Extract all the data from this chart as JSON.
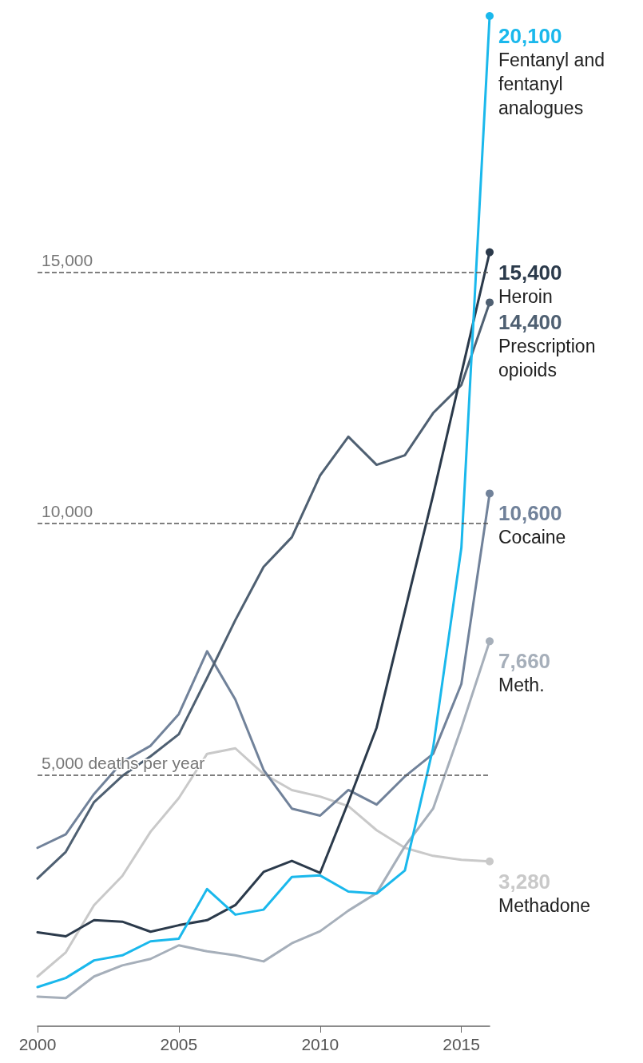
{
  "chart_data": {
    "type": "line",
    "x": [
      2000,
      2001,
      2002,
      2003,
      2004,
      2005,
      2006,
      2007,
      2008,
      2009,
      2010,
      2011,
      2012,
      2013,
      2014,
      2015,
      2016
    ],
    "xlim": [
      2000,
      2016
    ],
    "xticks": [
      2000,
      2005,
      2010,
      2015
    ],
    "tick_labels": "x",
    "grid": false,
    "series": [
      {
        "name": "Methadone",
        "color": "#c9c9c9",
        "values": [
          990,
          1470,
          2410,
          2990,
          3870,
          4540,
          5420,
          5530,
          5020,
          4700,
          4570,
          4380,
          3900,
          3550,
          3390,
          3310,
          3280
        ],
        "value_labels": [
          null,
          null,
          null,
          null,
          null,
          null,
          null,
          null,
          null,
          null,
          null,
          null,
          null,
          null,
          null,
          null,
          "3,280"
        ]
      },
      {
        "name": "Meth.",
        "color": "#a6afba",
        "values": [
          590,
          560,
          990,
          1210,
          1340,
          1610,
          1490,
          1410,
          1290,
          1650,
          1890,
          2300,
          2650,
          3580,
          4330,
          5940,
          7660
        ],
        "value_labels": [
          null,
          null,
          null,
          null,
          null,
          null,
          null,
          null,
          null,
          null,
          null,
          null,
          null,
          null,
          null,
          null,
          "7,660"
        ]
      },
      {
        "name": "Cocaine",
        "color": "#71829a",
        "values": [
          3550,
          3820,
          4620,
          5260,
          5580,
          6210,
          7460,
          6500,
          5100,
          4330,
          4190,
          4700,
          4410,
          4970,
          5420,
          6810,
          10600
        ],
        "value_labels": [
          null,
          null,
          null,
          null,
          null,
          null,
          null,
          null,
          null,
          null,
          null,
          null,
          null,
          null,
          null,
          null,
          "10,600"
        ]
      },
      {
        "name": "Prescription opioids",
        "color": "#4f6072",
        "values": [
          2940,
          3470,
          4460,
          4980,
          5370,
          5810,
          6930,
          8080,
          9140,
          9730,
          10960,
          11730,
          11170,
          11360,
          12200,
          12760,
          14400
        ],
        "value_labels": [
          null,
          null,
          null,
          null,
          null,
          null,
          null,
          null,
          null,
          null,
          null,
          null,
          null,
          null,
          null,
          null,
          "14,400"
        ]
      },
      {
        "name": "Heroin",
        "color": "#2b3a4b",
        "values": [
          1870,
          1790,
          2110,
          2080,
          1880,
          2010,
          2110,
          2410,
          3070,
          3290,
          3050,
          4460,
          5940,
          8260,
          10570,
          12990,
          15400
        ],
        "value_labels": [
          null,
          null,
          null,
          null,
          null,
          null,
          null,
          null,
          null,
          null,
          null,
          null,
          null,
          null,
          null,
          null,
          "15,400"
        ]
      },
      {
        "name": "Fentanyl and fentanyl analogues",
        "color": "#1ab8ec",
        "values": [
          780,
          960,
          1310,
          1410,
          1690,
          1740,
          2730,
          2220,
          2320,
          2970,
          3000,
          2680,
          2640,
          3100,
          5540,
          9520,
          20100
        ],
        "value_labels": [
          null,
          null,
          null,
          null,
          null,
          null,
          null,
          null,
          null,
          null,
          null,
          null,
          null,
          null,
          null,
          null,
          "20,100"
        ]
      }
    ],
    "ref_lines": [
      {
        "axis": "y",
        "value": 5000,
        "label": "5,000 deaths per year",
        "color": "#555555",
        "line_style": "dashed"
      },
      {
        "axis": "y",
        "value": 10000,
        "label": "10,000",
        "color": "#555555",
        "line_style": "dashed"
      },
      {
        "axis": "y",
        "value": 15000,
        "label": "15,000",
        "color": "#555555",
        "line_style": "dashed"
      }
    ]
  }
}
